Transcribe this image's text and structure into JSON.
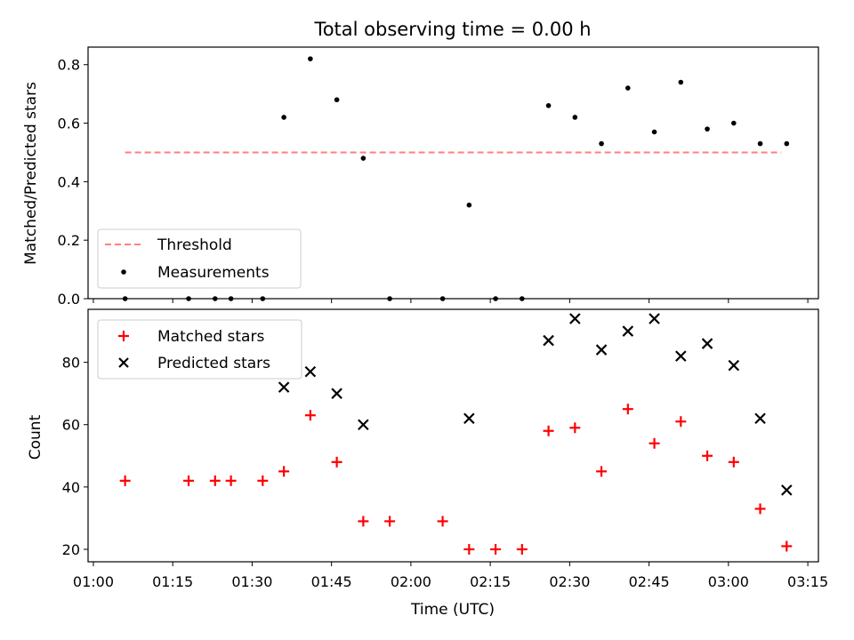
{
  "chart_data": [
    {
      "type": "scatter",
      "title": "Total observing time = 0.00 h",
      "xlabel": "",
      "ylabel": "Matched/Predicted stars",
      "xlim": [
        "00:59",
        "03:17"
      ],
      "ylim": [
        0.0,
        0.86
      ],
      "yticks": [
        "0.0",
        "0.2",
        "0.4",
        "0.6",
        "0.8"
      ],
      "legend": {
        "placement": "lower-left"
      },
      "series": [
        {
          "name": "Threshold",
          "kind": "line",
          "style": "dashed",
          "color": "#ff7f7f",
          "x": [
            "01:06",
            "03:10"
          ],
          "y": [
            0.5,
            0.5
          ]
        },
        {
          "name": "Measurements",
          "kind": "scatter",
          "marker": "dot",
          "color": "#000000",
          "x": [
            "01:06",
            "01:18",
            "01:23",
            "01:26",
            "01:32",
            "01:36",
            "01:41",
            "01:46",
            "01:51",
            "01:56",
            "02:06",
            "02:11",
            "02:16",
            "02:21",
            "02:26",
            "02:31",
            "02:36",
            "02:41",
            "02:46",
            "02:51",
            "02:56",
            "03:01",
            "03:06",
            "03:11"
          ],
          "y": [
            0.0,
            0.0,
            0.0,
            0.0,
            0.0,
            0.62,
            0.82,
            0.68,
            0.48,
            0.0,
            0.0,
            0.32,
            0.0,
            0.0,
            0.66,
            0.62,
            0.53,
            0.72,
            0.57,
            0.74,
            0.58,
            0.6,
            0.53,
            0.53
          ]
        }
      ]
    },
    {
      "type": "scatter",
      "title": "",
      "xlabel": "Time (UTC)",
      "ylabel": "Count",
      "xlim": [
        "00:59",
        "03:17"
      ],
      "ylim": [
        16,
        97
      ],
      "yticks": [
        "20",
        "40",
        "60",
        "80"
      ],
      "xticks": [
        "01:00",
        "01:15",
        "01:30",
        "01:45",
        "02:00",
        "02:15",
        "02:30",
        "02:45",
        "03:00",
        "03:15"
      ],
      "legend": {
        "placement": "upper-left"
      },
      "series": [
        {
          "name": "Matched stars",
          "kind": "scatter",
          "marker": "plus",
          "color": "#ff0000",
          "x": [
            "01:06",
            "01:18",
            "01:23",
            "01:26",
            "01:32",
            "01:36",
            "01:41",
            "01:46",
            "01:51",
            "01:56",
            "02:06",
            "02:11",
            "02:16",
            "02:21",
            "02:26",
            "02:31",
            "02:36",
            "02:41",
            "02:46",
            "02:51",
            "02:56",
            "03:01",
            "03:06",
            "03:11"
          ],
          "y": [
            42,
            42,
            42,
            42,
            42,
            45,
            63,
            48,
            29,
            29,
            29,
            20,
            20,
            20,
            58,
            59,
            45,
            65,
            54,
            61,
            50,
            48,
            33,
            21
          ]
        },
        {
          "name": "Predicted stars",
          "kind": "scatter",
          "marker": "x",
          "color": "#000000",
          "x": [
            "01:36",
            "01:41",
            "01:46",
            "01:51",
            "02:11",
            "02:26",
            "02:31",
            "02:36",
            "02:41",
            "02:46",
            "02:51",
            "02:56",
            "03:01",
            "03:06",
            "03:11"
          ],
          "y": [
            72,
            77,
            70,
            60,
            62,
            87,
            94,
            84,
            90,
            94,
            82,
            86,
            79,
            62,
            39
          ]
        }
      ]
    }
  ]
}
